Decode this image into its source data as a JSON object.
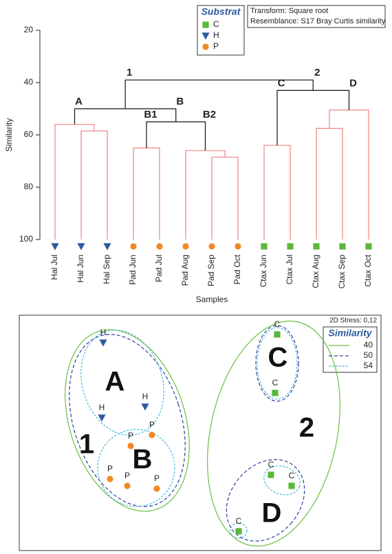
{
  "chart_data": [
    {
      "type": "dendrogram",
      "y_label": "Similarity",
      "x_label": "Samples",
      "ylim": [
        100,
        20
      ],
      "yticks": [
        20,
        40,
        60,
        80,
        100
      ],
      "transform": "Transform: Square root",
      "resemblance": "Resemblance: S17 Bray Curtis similarity",
      "legend_title": "Substrat",
      "groups": [
        {
          "name": "C",
          "color": "#5cb83a",
          "shape": "square"
        },
        {
          "name": "H",
          "color": "#2d5aa0",
          "shape": "triangle"
        },
        {
          "name": "P",
          "color": "#f08a24",
          "shape": "circle"
        }
      ],
      "leaves": [
        {
          "label": "Hal Jul",
          "group": "H"
        },
        {
          "label": "Hal Jun",
          "group": "H"
        },
        {
          "label": "Hal Sep",
          "group": "H"
        },
        {
          "label": "Pad Jun",
          "group": "P"
        },
        {
          "label": "Pad Jul",
          "group": "P"
        },
        {
          "label": "Pad Aug",
          "group": "P"
        },
        {
          "label": "Pad Sep",
          "group": "P"
        },
        {
          "label": "Pad Oct",
          "group": "P"
        },
        {
          "label": "Ctax Jun",
          "group": "C"
        },
        {
          "label": "Ctax Jul",
          "group": "C"
        },
        {
          "label": "Ctax Aug",
          "group": "C"
        },
        {
          "label": "Ctax Sep",
          "group": "C"
        },
        {
          "label": "Ctax Oct",
          "group": "C"
        }
      ],
      "merges": [
        {
          "children": [
            1,
            2
          ],
          "similarity": 58.5,
          "color": "#f08080"
        },
        {
          "children": [
            0,
            13
          ],
          "similarity": 56,
          "color": "#f08080",
          "label": "A"
        },
        {
          "children": [
            3,
            4
          ],
          "similarity": 65,
          "color": "#f08080",
          "label": "B1"
        },
        {
          "children": [
            6,
            7
          ],
          "similarity": 68.5,
          "color": "#f08080"
        },
        {
          "children": [
            5,
            16
          ],
          "similarity": 66,
          "color": "#f08080",
          "label": "B2"
        },
        {
          "children": [
            15,
            17
          ],
          "similarity": 55,
          "color": "#111111",
          "label": "B"
        },
        {
          "children": [
            14,
            18
          ],
          "similarity": 50,
          "color": "#111111",
          "label": "1"
        },
        {
          "children": [
            8,
            9
          ],
          "similarity": 64,
          "color": "#f08080",
          "label": "C"
        },
        {
          "children": [
            10,
            11
          ],
          "similarity": 57.5,
          "color": "#f08080"
        },
        {
          "children": [
            21,
            12
          ],
          "similarity": 50.5,
          "color": "#f08080",
          "label": "D"
        },
        {
          "children": [
            20,
            22
          ],
          "similarity": 43,
          "color": "#111111",
          "label": "2"
        },
        {
          "children": [
            19,
            23
          ],
          "similarity": 39,
          "color": "#111111"
        }
      ]
    },
    {
      "type": "scatter",
      "stress": "2D Stress: 0,12",
      "legend_title": "Similarity",
      "levels": [
        {
          "value": 40,
          "color": "#6abf3e",
          "dash": "none"
        },
        {
          "value": 50,
          "color": "#2f3f9a",
          "dash": "5,3"
        },
        {
          "value": 54,
          "color": "#3fb8d8",
          "dash": "3,2"
        }
      ],
      "group_labels": [
        "A",
        "B",
        "1",
        "2",
        "C",
        "D"
      ],
      "points": [
        {
          "x": -1.35,
          "y": 1.22,
          "label": "H"
        },
        {
          "x": -1.37,
          "y": 0.13,
          "label": "H"
        },
        {
          "x": -0.74,
          "y": 0.29,
          "label": "H"
        },
        {
          "x": -0.95,
          "y": -0.28,
          "label": "P"
        },
        {
          "x": -0.64,
          "y": -0.12,
          "label": "P"
        },
        {
          "x": -1.25,
          "y": -0.76,
          "label": "P"
        },
        {
          "x": -1.0,
          "y": -0.86,
          "label": "P"
        },
        {
          "x": -0.57,
          "y": -0.9,
          "label": "P"
        },
        {
          "x": 1.18,
          "y": 1.34,
          "label": "C"
        },
        {
          "x": 1.15,
          "y": 0.49,
          "label": "C"
        },
        {
          "x": 1.09,
          "y": -0.7,
          "label": "C"
        },
        {
          "x": 1.39,
          "y": -0.86,
          "label": "C"
        },
        {
          "x": 0.62,
          "y": -1.52,
          "label": "C"
        }
      ]
    }
  ]
}
